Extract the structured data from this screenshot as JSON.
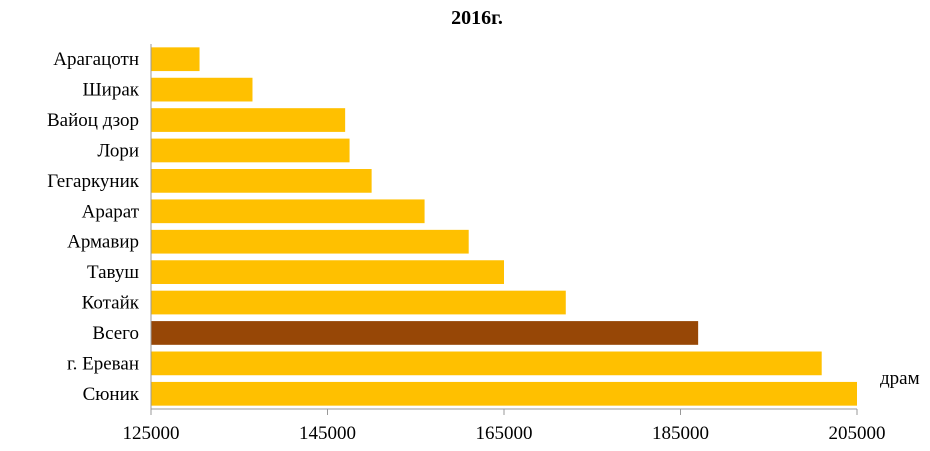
{
  "chart_data": {
    "type": "bar",
    "orientation": "horizontal",
    "title": "2016г.",
    "unit_label": "драм",
    "xlim": [
      125000,
      205000
    ],
    "x_ticks": [
      125000,
      145000,
      165000,
      185000,
      205000
    ],
    "x_tick_labels": [
      "125000",
      "145000",
      "165000",
      "185000",
      "205000"
    ],
    "grid": false,
    "categories": [
      "Арагацотн",
      "Ширак",
      "Вайоц дзор",
      "Лори",
      "Гегаркуник",
      "Арарат",
      "Армавир",
      "Тавуш",
      "Котайк",
      "Всего",
      "г. Ереван",
      "Сюник"
    ],
    "values": [
      130500,
      136500,
      147000,
      147500,
      150000,
      156000,
      161000,
      165000,
      172000,
      187000,
      201000,
      205000
    ],
    "colors": {
      "default": "#FFC000",
      "highlight": "#974706"
    },
    "highlight_category": "Всего"
  }
}
